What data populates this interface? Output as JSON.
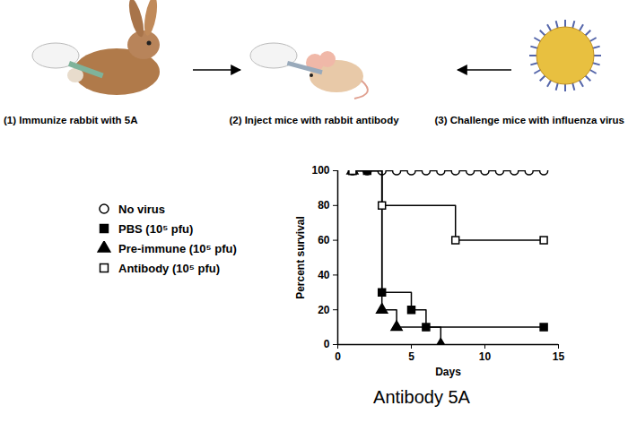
{
  "diagram": {
    "steps": [
      "(1) Immunize rabbit with 5A",
      "(2) Inject mice with rabbit antibody",
      "(3) Challenge mice with influenza virus"
    ]
  },
  "chart_data": {
    "type": "line",
    "title": "Antibody 5A",
    "x_label": "Days",
    "y_label": "Percent survival",
    "xlim": [
      0,
      15
    ],
    "xticks": [
      0,
      5,
      10,
      15
    ],
    "ylim": [
      0,
      100
    ],
    "yticks": [
      0,
      20,
      40,
      60,
      80,
      100
    ],
    "grid": false,
    "legend": "left",
    "line_style": "step",
    "series": [
      {
        "name": "No virus",
        "color": "#000000",
        "marker": "circle-open",
        "x": [
          1,
          2,
          3,
          4,
          5,
          6,
          7,
          8,
          9,
          10,
          11,
          12,
          13,
          14
        ],
        "values": [
          100,
          100,
          100,
          100,
          100,
          100,
          100,
          100,
          100,
          100,
          100,
          100,
          100,
          100
        ]
      },
      {
        "name": "PBS (10⁵ pfu)",
        "color": "#000000",
        "marker": "square",
        "x": [
          1,
          2,
          3,
          5,
          6,
          14
        ],
        "values": [
          100,
          100,
          30,
          20,
          10,
          10
        ]
      },
      {
        "name": "Pre-immune (10⁵ pfu)",
        "color": "#000000",
        "marker": "triangle",
        "x": [
          1,
          3,
          4,
          7
        ],
        "values": [
          100,
          20,
          10,
          0
        ]
      },
      {
        "name": "Antibody (10⁵ pfu)",
        "color": "#000000",
        "marker": "square-open",
        "x": [
          1,
          3,
          8,
          14
        ],
        "values": [
          100,
          80,
          60,
          60
        ]
      }
    ]
  }
}
